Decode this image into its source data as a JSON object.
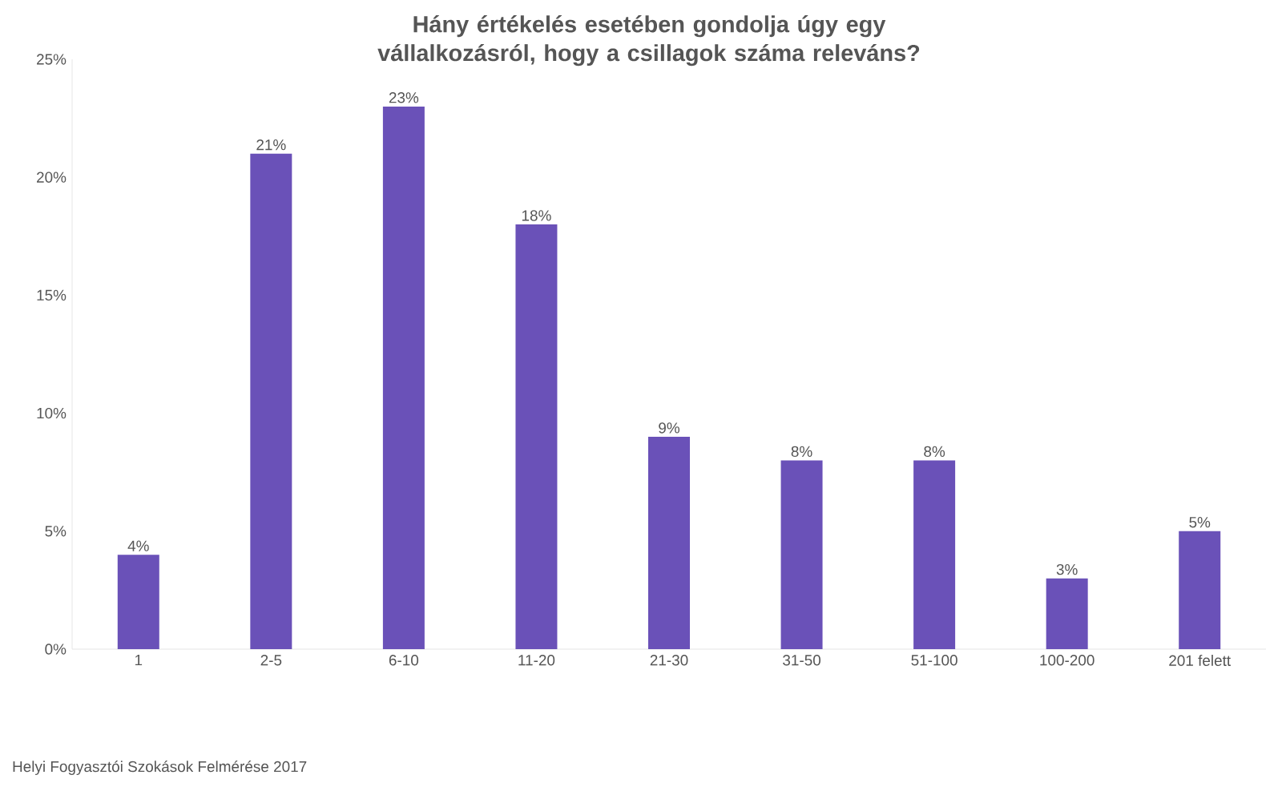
{
  "chart_data": {
    "type": "bar",
    "title": "Hány értékelés esetében gondolja úgy egy vállalkozásról, hogy a csillagok száma releváns?",
    "categories": [
      "1",
      "2-5",
      "6-10",
      "11-20",
      "21-30",
      "31-50",
      "51-100",
      "100-200",
      "201 felett"
    ],
    "values": [
      4,
      21,
      23,
      18,
      9,
      8,
      8,
      3,
      5
    ],
    "value_labels": [
      "4%",
      "21%",
      "23%",
      "18%",
      "9%",
      "8%",
      "8%",
      "3%",
      "5%"
    ],
    "color": "#6a51b8",
    "ylim": [
      0,
      25
    ],
    "yticks": [
      {
        "value": 0,
        "label": "0%"
      },
      {
        "value": 5,
        "label": "5%"
      },
      {
        "value": 10,
        "label": "10%"
      },
      {
        "value": 15,
        "label": "15%"
      },
      {
        "value": 20,
        "label": "20%"
      },
      {
        "value": 25,
        "label": "25%"
      }
    ],
    "annotations": [
      "Helyi Fogyasztói Szokások Felmérése 2017"
    ]
  }
}
